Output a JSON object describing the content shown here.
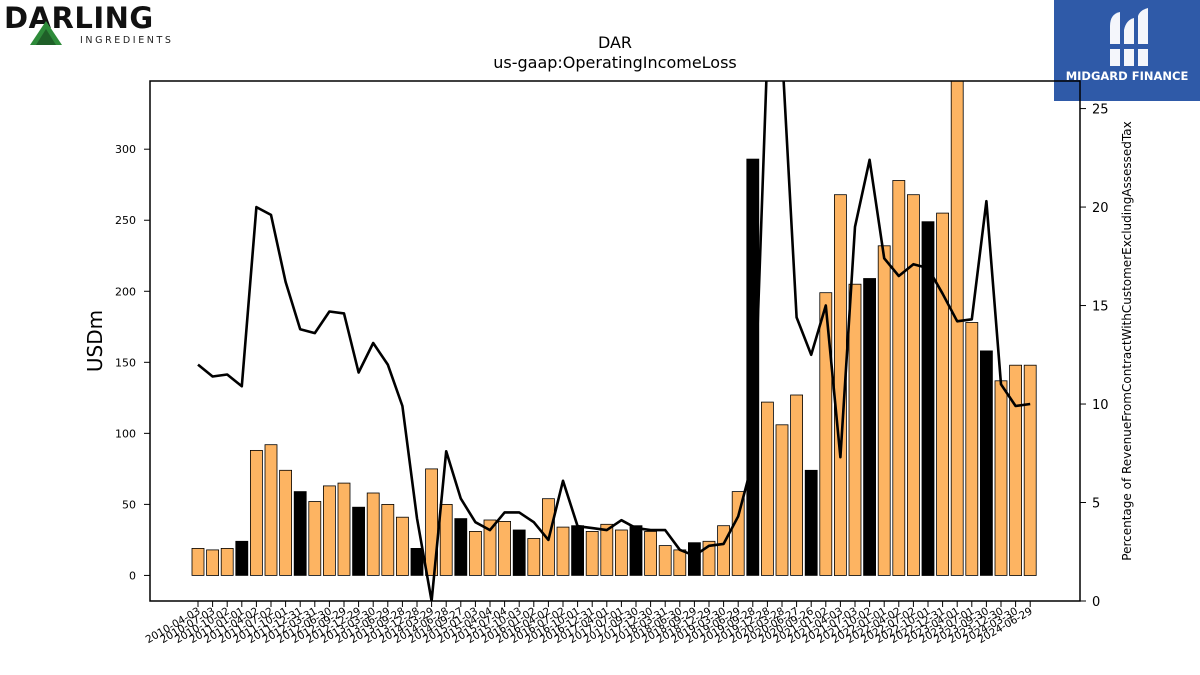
{
  "logos": {
    "left_brand": "DARLING",
    "left_sub": "INGREDIENTS",
    "right_brand": "MIDGARD FINANCE"
  },
  "chart_data": {
    "type": "bar",
    "title": "DAR",
    "subtitle": "us-gaap:OperatingIncomeLoss",
    "ylabel": "USDm",
    "y2label": "Percentage of RevenueFromContractWithCustomerExcludingAssessedTax",
    "ylim": [
      -18,
      348
    ],
    "y2lim": [
      0,
      26.4
    ],
    "yticks": [
      0,
      50,
      100,
      150,
      200,
      250,
      300
    ],
    "y2ticks": [
      0,
      5,
      10,
      15,
      20,
      25
    ],
    "colors": {
      "bar_default": "#fdb462",
      "bar_highlight": "#000000",
      "line": "#000000"
    },
    "categories": [
      "2010-04-03",
      "2010-07-03",
      "2010-10-02",
      "2011-01-01",
      "2011-04-02",
      "2011-07-02",
      "2011-10-01",
      "2011-12-31",
      "2012-03-31",
      "2012-06-30",
      "2012-09-29",
      "2012-12-29",
      "2013-03-30",
      "2013-06-29",
      "2013-09-28",
      "2013-12-28",
      "2014-03-29",
      "2014-06-28",
      "2014-09-27",
      "2015-01-03",
      "2015-04-04",
      "2015-07-04",
      "2015-10-03",
      "2016-01-02",
      "2016-04-02",
      "2016-07-02",
      "2016-10-01",
      "2016-12-31",
      "2017-04-01",
      "2017-07-01",
      "2017-09-30",
      "2017-12-30",
      "2018-03-31",
      "2018-06-30",
      "2018-09-29",
      "2018-12-29",
      "2019-03-30",
      "2019-06-29",
      "2019-09-28",
      "2019-12-28",
      "2020-03-28",
      "2020-06-27",
      "2020-09-26",
      "2021-01-02",
      "2021-04-03",
      "2021-07-03",
      "2021-10-02",
      "2022-01-01",
      "2022-04-02",
      "2022-07-02",
      "2022-10-01",
      "2022-12-31",
      "2023-04-01",
      "2023-07-01",
      "2023-09-30",
      "2023-12-30",
      "2024-03-30",
      "2024-06-29"
    ],
    "series": [
      {
        "type": "bar",
        "values": [
          19,
          18,
          19,
          24,
          88,
          92,
          74,
          59,
          52,
          63,
          65,
          48,
          58,
          50,
          41,
          19,
          75,
          50,
          40,
          31,
          39,
          38,
          32,
          26,
          54,
          34,
          35,
          31,
          36,
          32,
          35,
          31,
          21,
          18,
          23,
          24,
          35,
          59,
          293,
          122,
          106,
          127,
          74,
          199,
          268,
          205,
          209,
          232,
          278,
          268,
          249,
          255,
          370,
          178,
          158,
          137,
          148,
          148
        ],
        "highlight": [
          false,
          false,
          false,
          true,
          false,
          false,
          false,
          true,
          false,
          false,
          false,
          true,
          false,
          false,
          false,
          true,
          false,
          false,
          true,
          false,
          false,
          false,
          true,
          false,
          false,
          false,
          true,
          false,
          false,
          false,
          true,
          false,
          false,
          false,
          true,
          false,
          false,
          false,
          true,
          false,
          false,
          false,
          true,
          false,
          false,
          false,
          true,
          false,
          false,
          false,
          true,
          false,
          false,
          false,
          true,
          false,
          false,
          false
        ]
      },
      {
        "type": "line",
        "axis": "right",
        "values": [
          12.0,
          11.4,
          11.5,
          10.9,
          20.0,
          19.6,
          16.2,
          13.8,
          13.6,
          14.7,
          14.6,
          11.6,
          13.1,
          12.0,
          9.9,
          4.2,
          0.0,
          7.6,
          5.2,
          4.0,
          3.6,
          4.5,
          4.5,
          4.0,
          3.1,
          6.1,
          3.8,
          3.7,
          3.6,
          4.1,
          3.7,
          3.6,
          3.6,
          2.6,
          2.3,
          2.8,
          2.9,
          4.3,
          7.1,
          28.0,
          28.0,
          14.4,
          12.5,
          15.0,
          7.3,
          19.0,
          22.4,
          17.4,
          16.5,
          17.1,
          16.9,
          15.6,
          14.2,
          14.3,
          20.3,
          11.0,
          9.9,
          10.0
        ]
      }
    ]
  }
}
